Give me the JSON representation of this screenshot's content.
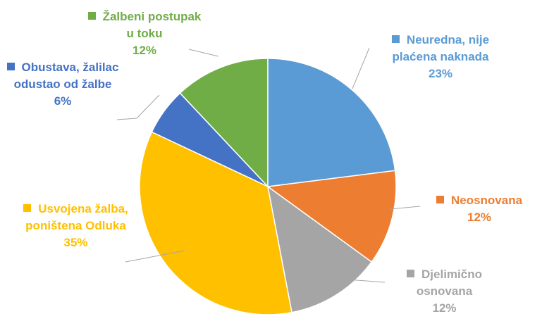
{
  "chart_data": {
    "type": "pie",
    "categories": [
      "Neuredna, nije plaćena naknada",
      "Neosnovana",
      "Djelimično osnovana",
      "Usvojena žalba, poništena Odluka",
      "Obustava, žalilac odustao od žalbe",
      "Žalbeni postupak u toku"
    ],
    "values": [
      23,
      12,
      12,
      35,
      6,
      12
    ],
    "value_labels": [
      "23%",
      "12%",
      "12%",
      "35%",
      "6%",
      "12%"
    ],
    "colors": [
      "#5b9bd5",
      "#ed7d31",
      "#a5a5a5",
      "#ffc000",
      "#4472c4",
      "#70ad47"
    ]
  }
}
